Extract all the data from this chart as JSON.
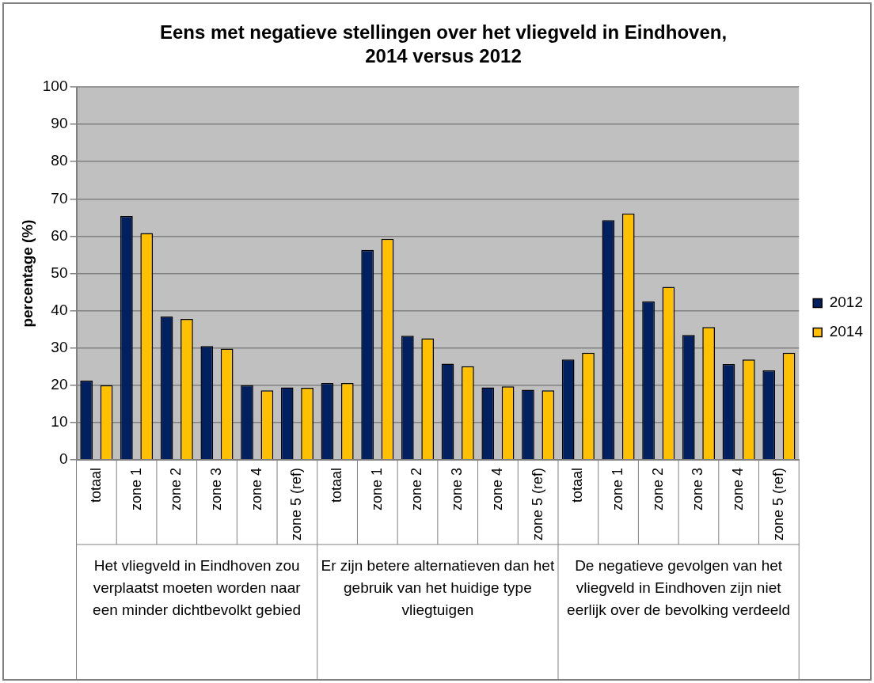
{
  "chart_data": {
    "type": "bar",
    "title": "Eens met negatieve stellingen over het vliegveld in Eindhoven, 2014 versus 2012",
    "ylabel": "percentage (%)",
    "categories": [
      "totaal",
      "zone 1",
      "zone 2",
      "zone 3",
      "zone 4",
      "zone 5 (ref)",
      "totaal",
      "zone 1",
      "zone 2",
      "zone 3",
      "zone 4",
      "zone 5 (ref)",
      "totaal",
      "zone 1",
      "zone 2",
      "zone 3",
      "zone 4",
      "zone 5 (ref)"
    ],
    "series": [
      {
        "name": "2012",
        "color": "#00205f",
        "values": [
          21.3,
          65.4,
          38.5,
          30.5,
          20.0,
          19.4,
          20.6,
          56.3,
          33.3,
          25.8,
          19.4,
          18.8,
          26.9,
          64.3,
          42.5,
          33.5,
          25.7,
          24.0
        ]
      },
      {
        "name": "2014",
        "color": "#ffc000",
        "values": [
          20.0,
          60.8,
          37.8,
          29.8,
          18.6,
          19.3,
          20.6,
          59.3,
          32.6,
          25.1,
          19.7,
          18.6,
          28.7,
          66.1,
          46.4,
          35.6,
          26.9,
          28.7
        ]
      }
    ],
    "annotations": [
      "Het vliegveld in Eindhoven zou verplaatst moeten worden naar een minder dichtbevolkt gebied",
      "Er zijn betere alternatieven dan het gebruik van het huidige type vliegtuigen",
      "De negatieve gevolgen van het vliegveld in Eindhoven zijn niet eerlijk over de bevolking verdeeld"
    ],
    "ylim": [
      0,
      100
    ],
    "yticks": [
      0,
      10,
      20,
      30,
      40,
      50,
      60,
      70,
      80,
      90,
      100
    ],
    "grid": "y",
    "legend": "right"
  }
}
